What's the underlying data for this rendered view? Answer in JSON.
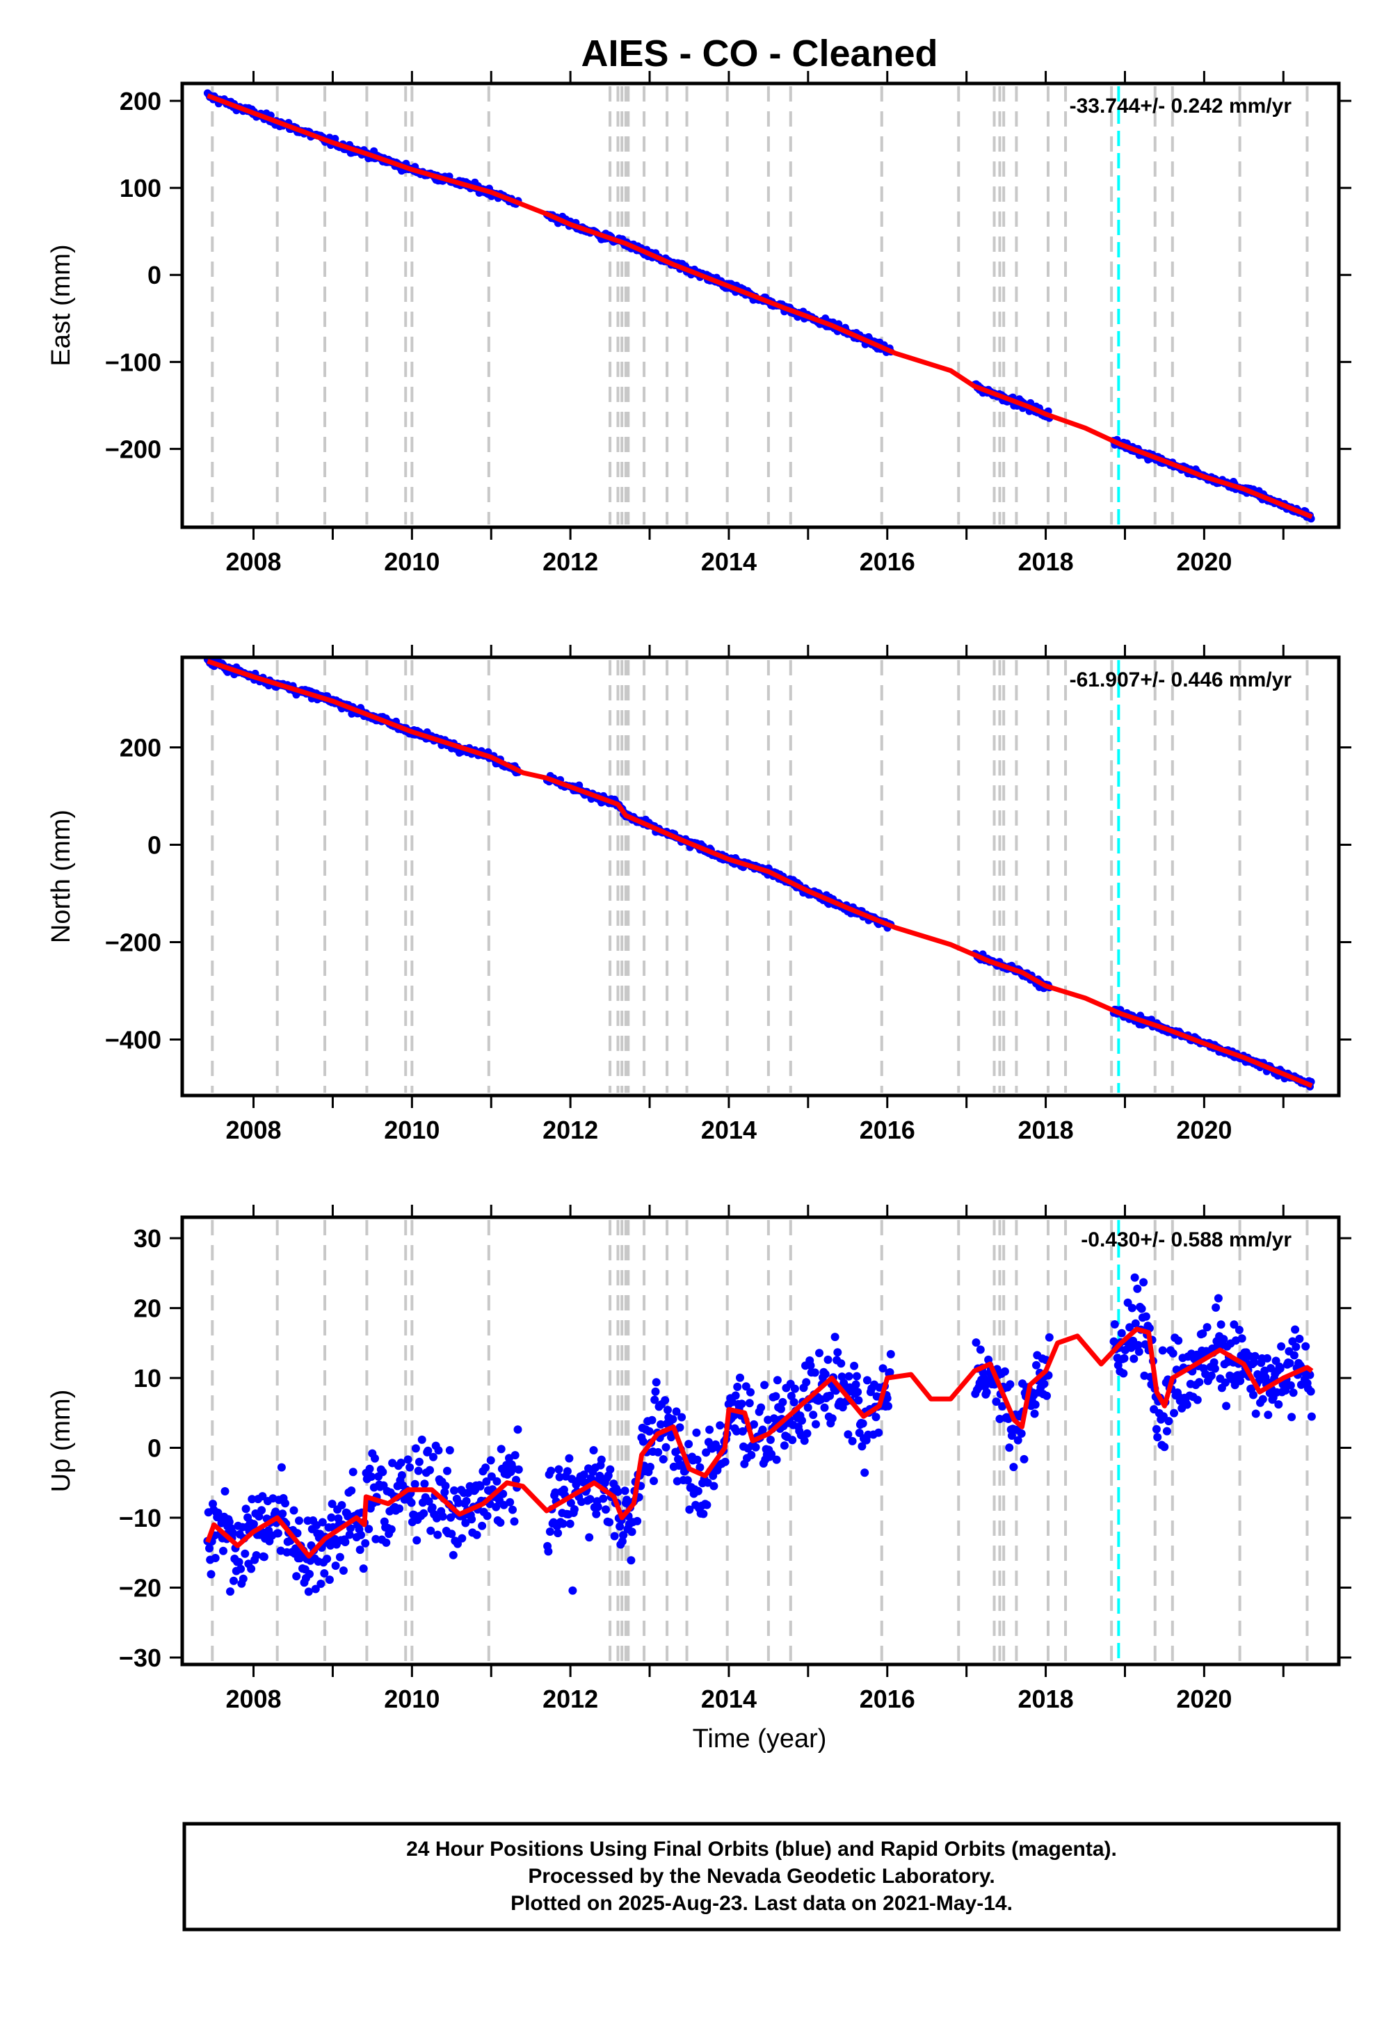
{
  "figure": {
    "title": "AIES  - CO - Cleaned",
    "xlabel": "Time (year)",
    "footer": [
      "24 Hour Positions Using Final Orbits (blue) and Rapid Orbits (magenta).",
      "Processed by the Nevada Geodetic Laboratory.",
      "Plotted on 2025-Aug-23. Last data on 2021-May-14."
    ]
  },
  "colors": {
    "data": "#0000ff",
    "model": "#ff0000",
    "event_line": "#c8c8c8",
    "special_line": "#00ffff"
  },
  "chart_data": [
    {
      "type": "scatter",
      "name": "east",
      "ylabel": "East (mm)",
      "rate_text": "-33.744+/- 0.242 mm/yr",
      "xlim": [
        2007.1,
        2021.7
      ],
      "ylim": [
        -290,
        220
      ],
      "yticks": [
        -200,
        -100,
        0,
        100,
        200
      ],
      "xticks": [
        2008,
        2010,
        2012,
        2014,
        2016,
        2018,
        2020
      ],
      "data_gaps": [
        [
          2011.35,
          2011.7
        ],
        [
          2016.05,
          2017.1
        ],
        [
          2018.05,
          2018.85
        ]
      ],
      "model_points": [
        [
          2007.42,
          206
        ],
        [
          2008.0,
          186
        ],
        [
          2009.0,
          152
        ],
        [
          2009.5,
          137
        ],
        [
          2010.0,
          121
        ],
        [
          2011.0,
          95
        ],
        [
          2011.7,
          70
        ],
        [
          2012.0,
          58
        ],
        [
          2012.7,
          36
        ],
        [
          2013.3,
          12
        ],
        [
          2014.0,
          -13
        ],
        [
          2014.7,
          -38
        ],
        [
          2015.3,
          -58
        ],
        [
          2016.1,
          -90
        ],
        [
          2016.8,
          -110
        ],
        [
          2017.1,
          -128
        ],
        [
          2017.8,
          -152
        ],
        [
          2018.0,
          -160
        ],
        [
          2018.5,
          -176
        ],
        [
          2018.95,
          -195
        ],
        [
          2019.5,
          -214
        ],
        [
          2020.0,
          -232
        ],
        [
          2020.5,
          -246
        ],
        [
          2021.36,
          -278
        ]
      ]
    },
    {
      "type": "scatter",
      "name": "north",
      "ylabel": "North (mm)",
      "rate_text": "-61.907+/- 0.446 mm/yr",
      "xlim": [
        2007.1,
        2021.7
      ],
      "ylim": [
        -515,
        385
      ],
      "yticks": [
        -400,
        -200,
        0,
        200
      ],
      "xticks": [
        2008,
        2010,
        2012,
        2014,
        2016,
        2018,
        2020
      ],
      "data_gaps": [
        [
          2011.35,
          2011.7
        ],
        [
          2016.05,
          2017.1
        ],
        [
          2018.05,
          2018.85
        ]
      ],
      "model_points": [
        [
          2007.42,
          377
        ],
        [
          2008.0,
          345
        ],
        [
          2009.0,
          295
        ],
        [
          2010.0,
          232
        ],
        [
          2011.0,
          180
        ],
        [
          2011.4,
          148
        ],
        [
          2011.7,
          137
        ],
        [
          2012.6,
          83
        ],
        [
          2012.7,
          60
        ],
        [
          2013.4,
          10
        ],
        [
          2014.0,
          -30
        ],
        [
          2014.5,
          -55
        ],
        [
          2015.0,
          -95
        ],
        [
          2015.5,
          -130
        ],
        [
          2016.1,
          -170
        ],
        [
          2016.8,
          -205
        ],
        [
          2017.3,
          -240
        ],
        [
          2017.7,
          -262
        ],
        [
          2018.0,
          -290
        ],
        [
          2018.5,
          -315
        ],
        [
          2018.95,
          -347
        ],
        [
          2019.5,
          -377
        ],
        [
          2020.0,
          -408
        ],
        [
          2020.5,
          -437
        ],
        [
          2021.36,
          -495
        ]
      ]
    },
    {
      "type": "scatter",
      "name": "up",
      "ylabel": "Up (mm)",
      "rate_text": "-0.430+/- 0.588 mm/yr",
      "xlim": [
        2007.1,
        2021.7
      ],
      "ylim": [
        -31,
        33
      ],
      "yticks": [
        -30,
        -20,
        -10,
        0,
        10,
        20,
        30
      ],
      "xticks": [
        2008,
        2010,
        2012,
        2014,
        2016,
        2018,
        2020
      ],
      "data_gaps": [
        [
          2011.35,
          2011.7
        ],
        [
          2016.05,
          2017.1
        ],
        [
          2018.05,
          2018.85
        ]
      ],
      "model_points": [
        [
          2007.42,
          -13.5
        ],
        [
          2007.5,
          -11
        ],
        [
          2007.8,
          -14
        ],
        [
          2008.0,
          -12
        ],
        [
          2008.3,
          -10
        ],
        [
          2008.7,
          -15.5
        ],
        [
          2008.9,
          -13
        ],
        [
          2009.3,
          -10
        ],
        [
          2009.4,
          -11
        ],
        [
          2009.42,
          -7
        ],
        [
          2009.7,
          -8
        ],
        [
          2009.95,
          -6
        ],
        [
          2010.25,
          -6
        ],
        [
          2010.6,
          -9.5
        ],
        [
          2010.9,
          -8
        ],
        [
          2011.2,
          -5
        ],
        [
          2011.4,
          -5.5
        ],
        [
          2011.7,
          -9
        ],
        [
          2012.0,
          -7
        ],
        [
          2012.3,
          -5
        ],
        [
          2012.55,
          -7
        ],
        [
          2012.65,
          -10
        ],
        [
          2012.8,
          -8
        ],
        [
          2012.9,
          -1
        ],
        [
          2013.1,
          2
        ],
        [
          2013.3,
          3
        ],
        [
          2013.5,
          -3
        ],
        [
          2013.7,
          -4
        ],
        [
          2013.95,
          0
        ],
        [
          2014.0,
          5.5
        ],
        [
          2014.2,
          5
        ],
        [
          2014.3,
          1
        ],
        [
          2014.5,
          2
        ],
        [
          2014.8,
          5
        ],
        [
          2015.0,
          7
        ],
        [
          2015.3,
          10
        ],
        [
          2015.7,
          4.5
        ],
        [
          2015.9,
          6
        ],
        [
          2016.0,
          10
        ],
        [
          2016.3,
          10.5
        ],
        [
          2016.55,
          7
        ],
        [
          2016.8,
          7
        ],
        [
          2017.1,
          11
        ],
        [
          2017.3,
          12
        ],
        [
          2017.45,
          8
        ],
        [
          2017.6,
          4
        ],
        [
          2017.7,
          3
        ],
        [
          2017.8,
          9
        ],
        [
          2018.0,
          11
        ],
        [
          2018.15,
          15
        ],
        [
          2018.4,
          16
        ],
        [
          2018.7,
          12
        ],
        [
          2018.95,
          15
        ],
        [
          2019.15,
          17
        ],
        [
          2019.3,
          16.5
        ],
        [
          2019.4,
          8
        ],
        [
          2019.5,
          6
        ],
        [
          2019.6,
          10
        ],
        [
          2019.9,
          12
        ],
        [
          2020.2,
          14
        ],
        [
          2020.5,
          12
        ],
        [
          2020.7,
          8
        ],
        [
          2021.0,
          10
        ],
        [
          2021.3,
          11.5
        ],
        [
          2021.36,
          11
        ]
      ]
    }
  ],
  "event_lines": [
    2007.48,
    2008.3,
    2008.9,
    2009.43,
    2009.92,
    2010.0,
    2010.97,
    2012.5,
    2012.6,
    2012.65,
    2012.7,
    2012.73,
    2012.93,
    2013.22,
    2013.47,
    2013.98,
    2014.5,
    2014.78,
    2015.93,
    2016.9,
    2017.35,
    2017.42,
    2017.47,
    2017.63,
    2018.03,
    2018.25,
    2018.83,
    2019.38,
    2019.6,
    2020.45,
    2021.3
  ],
  "special_lines": [
    2018.92
  ]
}
